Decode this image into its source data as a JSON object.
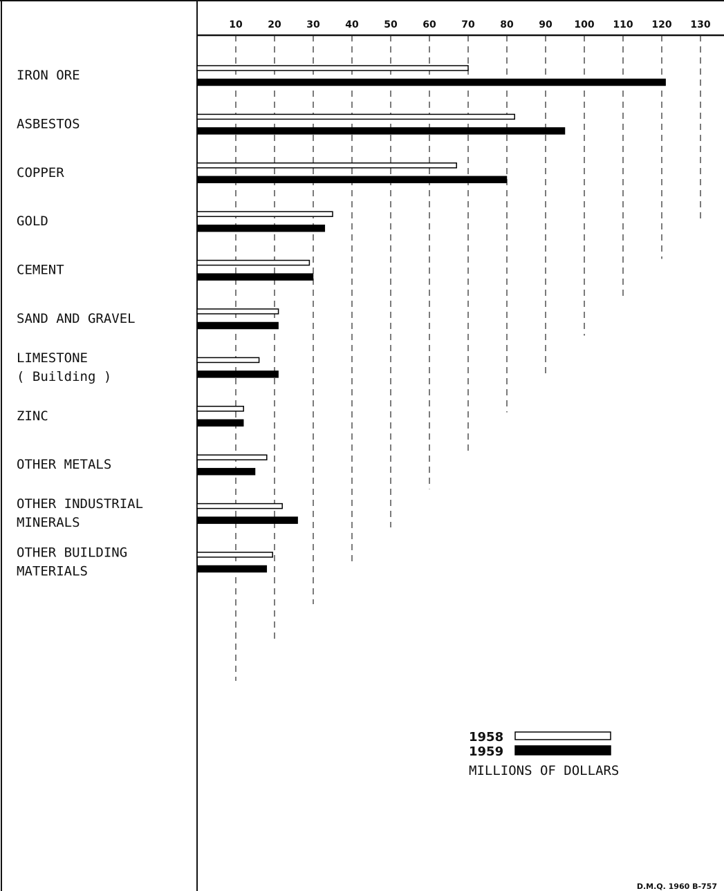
{
  "chart_data": {
    "type": "bar",
    "orientation": "horizontal",
    "categories": [
      [
        "IRON ORE"
      ],
      [
        "ASBESTOS"
      ],
      [
        "COPPER"
      ],
      [
        "GOLD"
      ],
      [
        "CEMENT"
      ],
      [
        "SAND AND GRAVEL"
      ],
      [
        "LIMESTONE",
        "( Building )"
      ],
      [
        "ZINC"
      ],
      [
        "OTHER METALS"
      ],
      [
        "OTHER INDUSTRIAL",
        "MINERALS"
      ],
      [
        "OTHER BUILDING",
        "MATERIALS"
      ]
    ],
    "series": [
      {
        "name": "1958",
        "fill": "#ffffff",
        "values": [
          70,
          82,
          67,
          35,
          29,
          21,
          16,
          12,
          18,
          22,
          19.5
        ]
      },
      {
        "name": "1959",
        "fill": "#000000",
        "values": [
          121,
          95,
          80,
          33,
          30,
          21,
          21,
          12,
          15,
          26,
          18
        ]
      }
    ],
    "xticks": [
      10,
      20,
      30,
      40,
      50,
      60,
      70,
      80,
      90,
      100,
      110,
      120,
      130
    ],
    "xlim": [
      0,
      135
    ],
    "grid": "dashed vertical",
    "legend": {
      "placement": "bottom-right",
      "items": [
        "1958",
        "1959"
      ],
      "units": "MILLIONS OF DOLLARS"
    },
    "credit": "D.M.Q. 1960  B-757"
  }
}
